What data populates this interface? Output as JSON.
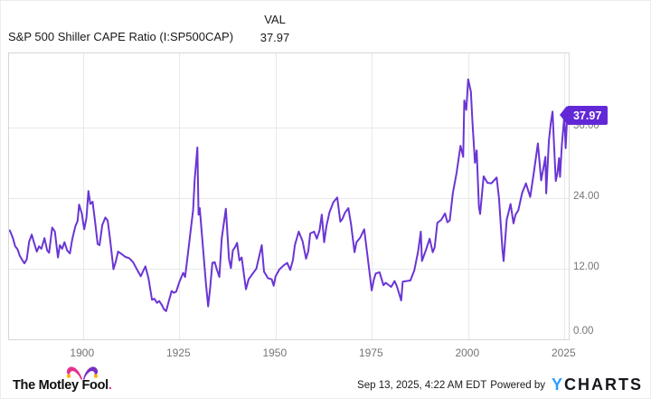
{
  "header": {
    "title": "S&P 500 Shiller CAPE Ratio (I:SP500CAP)",
    "column_label": "VAL",
    "column_value": "37.97"
  },
  "chart_data": {
    "type": "line",
    "title": "S&P 500 Shiller CAPE Ratio (I:SP500CAP)",
    "series_name": "S&P 500 Shiller CAPE Ratio",
    "legend_position": "none",
    "grid": true,
    "x_ticks": [
      1900,
      1925,
      1950,
      1975,
      2000,
      2025
    ],
    "x_tick_labels": [
      "1900",
      "1925",
      "1950",
      "1975",
      "2000",
      "2025"
    ],
    "y_ticks": [
      0,
      12,
      24,
      36
    ],
    "y_tick_labels": [
      "0.00",
      "12.00",
      "24.00",
      "36.00"
    ],
    "x_range": [
      1880.8,
      2026.1
    ],
    "y_range": [
      0,
      48.6
    ],
    "last_value_label": "37.97",
    "line_color": "#6a35d4",
    "points": [
      [
        1881.0,
        18.5
      ],
      [
        1881.8,
        17.2
      ],
      [
        1882.4,
        15.8
      ],
      [
        1883.0,
        15.3
      ],
      [
        1883.6,
        14.2
      ],
      [
        1884.3,
        13.4
      ],
      [
        1884.8,
        12.9
      ],
      [
        1885.4,
        13.6
      ],
      [
        1886.0,
        16.6
      ],
      [
        1886.7,
        17.8
      ],
      [
        1887.3,
        16.4
      ],
      [
        1888.0,
        14.9
      ],
      [
        1888.6,
        15.8
      ],
      [
        1889.2,
        15.4
      ],
      [
        1890.0,
        17.2
      ],
      [
        1890.7,
        15.1
      ],
      [
        1891.2,
        14.7
      ],
      [
        1892.0,
        19.0
      ],
      [
        1892.7,
        18.3
      ],
      [
        1893.5,
        13.9
      ],
      [
        1894.0,
        16.0
      ],
      [
        1894.6,
        15.4
      ],
      [
        1895.2,
        16.5
      ],
      [
        1895.9,
        15.1
      ],
      [
        1896.6,
        14.6
      ],
      [
        1897.2,
        17.0
      ],
      [
        1898.0,
        19.2
      ],
      [
        1898.6,
        20.1
      ],
      [
        1899.0,
        22.9
      ],
      [
        1899.7,
        21.4
      ],
      [
        1900.3,
        18.7
      ],
      [
        1900.9,
        20.6
      ],
      [
        1901.4,
        25.2
      ],
      [
        1901.9,
        23.0
      ],
      [
        1902.5,
        23.4
      ],
      [
        1903.1,
        20.2
      ],
      [
        1903.8,
        16.2
      ],
      [
        1904.3,
        16.0
      ],
      [
        1905.0,
        19.4
      ],
      [
        1905.8,
        20.7
      ],
      [
        1906.4,
        20.2
      ],
      [
        1907.0,
        17.2
      ],
      [
        1907.9,
        11.9
      ],
      [
        1908.5,
        13.2
      ],
      [
        1909.1,
        14.9
      ],
      [
        1910.0,
        14.5
      ],
      [
        1911.0,
        14.0
      ],
      [
        1912.0,
        13.8
      ],
      [
        1913.0,
        13.1
      ],
      [
        1914.0,
        11.9
      ],
      [
        1915.0,
        10.7
      ],
      [
        1915.6,
        11.6
      ],
      [
        1916.2,
        12.4
      ],
      [
        1917.0,
        10.4
      ],
      [
        1917.9,
        6.7
      ],
      [
        1918.5,
        6.9
      ],
      [
        1919.2,
        6.2
      ],
      [
        1919.8,
        6.5
      ],
      [
        1920.5,
        5.8
      ],
      [
        1921.0,
        5.1
      ],
      [
        1921.6,
        4.8
      ],
      [
        1922.2,
        6.3
      ],
      [
        1923.0,
        8.2
      ],
      [
        1923.6,
        7.9
      ],
      [
        1924.2,
        8.1
      ],
      [
        1925.0,
        9.7
      ],
      [
        1926.0,
        11.3
      ],
      [
        1926.5,
        10.6
      ],
      [
        1927.0,
        13.2
      ],
      [
        1928.0,
        18.8
      ],
      [
        1928.6,
        22.0
      ],
      [
        1929.0,
        27.1
      ],
      [
        1929.7,
        32.6
      ],
      [
        1930.0,
        21.2
      ],
      [
        1930.3,
        22.3
      ],
      [
        1931.0,
        16.7
      ],
      [
        1931.9,
        9.6
      ],
      [
        1932.5,
        5.6
      ],
      [
        1933.0,
        8.7
      ],
      [
        1933.6,
        13.0
      ],
      [
        1934.2,
        13.1
      ],
      [
        1934.8,
        11.8
      ],
      [
        1935.4,
        10.6
      ],
      [
        1936.0,
        17.1
      ],
      [
        1937.1,
        22.2
      ],
      [
        1937.9,
        13.6
      ],
      [
        1938.4,
        12.1
      ],
      [
        1938.9,
        15.1
      ],
      [
        1939.5,
        15.7
      ],
      [
        1940.0,
        16.4
      ],
      [
        1940.6,
        13.4
      ],
      [
        1941.2,
        13.9
      ],
      [
        1942.3,
        8.5
      ],
      [
        1943.0,
        10.2
      ],
      [
        1944.0,
        11.1
      ],
      [
        1945.0,
        12.0
      ],
      [
        1946.4,
        16.0
      ],
      [
        1947.0,
        11.5
      ],
      [
        1948.0,
        10.4
      ],
      [
        1949.0,
        10.2
      ],
      [
        1949.5,
        9.1
      ],
      [
        1950.0,
        10.7
      ],
      [
        1951.0,
        11.9
      ],
      [
        1952.0,
        12.5
      ],
      [
        1953.0,
        13.0
      ],
      [
        1953.8,
        11.8
      ],
      [
        1954.5,
        13.5
      ],
      [
        1955.0,
        16.0
      ],
      [
        1956.0,
        18.3
      ],
      [
        1957.0,
        16.7
      ],
      [
        1957.9,
        13.7
      ],
      [
        1958.5,
        15.0
      ],
      [
        1959.0,
        18.0
      ],
      [
        1960.0,
        18.3
      ],
      [
        1960.7,
        17.1
      ],
      [
        1961.4,
        18.5
      ],
      [
        1962.0,
        21.2
      ],
      [
        1962.6,
        16.5
      ],
      [
        1963.2,
        19.2
      ],
      [
        1964.0,
        21.6
      ],
      [
        1965.0,
        23.3
      ],
      [
        1966.0,
        24.1
      ],
      [
        1966.8,
        20.0
      ],
      [
        1967.3,
        20.4
      ],
      [
        1968.0,
        21.5
      ],
      [
        1968.9,
        22.3
      ],
      [
        1969.6,
        19.5
      ],
      [
        1970.5,
        14.8
      ],
      [
        1971.0,
        16.5
      ],
      [
        1972.0,
        17.3
      ],
      [
        1973.0,
        18.7
      ],
      [
        1974.0,
        13.5
      ],
      [
        1974.95,
        8.3
      ],
      [
        1975.5,
        10.1
      ],
      [
        1976.0,
        11.2
      ],
      [
        1977.0,
        11.4
      ],
      [
        1978.0,
        9.2
      ],
      [
        1978.6,
        9.6
      ],
      [
        1979.2,
        9.3
      ],
      [
        1980.0,
        8.9
      ],
      [
        1980.9,
        9.9
      ],
      [
        1981.5,
        9.0
      ],
      [
        1982.6,
        6.6
      ],
      [
        1983.0,
        9.8
      ],
      [
        1984.0,
        9.9
      ],
      [
        1985.0,
        10.0
      ],
      [
        1986.0,
        11.7
      ],
      [
        1987.0,
        14.9
      ],
      [
        1987.7,
        18.3
      ],
      [
        1988.0,
        13.3
      ],
      [
        1989.0,
        15.1
      ],
      [
        1990.0,
        17.1
      ],
      [
        1990.8,
        14.8
      ],
      [
        1991.3,
        15.6
      ],
      [
        1992.0,
        19.8
      ],
      [
        1993.0,
        20.3
      ],
      [
        1994.0,
        21.4
      ],
      [
        1994.6,
        19.9
      ],
      [
        1995.2,
        20.2
      ],
      [
        1996.0,
        24.8
      ],
      [
        1997.0,
        28.3
      ],
      [
        1998.0,
        32.9
      ],
      [
        1998.7,
        31.0
      ],
      [
        1999.0,
        40.6
      ],
      [
        1999.5,
        39.0
      ],
      [
        2000.0,
        44.2
      ],
      [
        2000.7,
        42.1
      ],
      [
        2001.1,
        37.0
      ],
      [
        2001.75,
        30.0
      ],
      [
        2002.2,
        32.1
      ],
      [
        2002.8,
        22.5
      ],
      [
        2003.1,
        21.3
      ],
      [
        2004.0,
        27.7
      ],
      [
        2005.0,
        26.6
      ],
      [
        2006.0,
        26.5
      ],
      [
        2007.4,
        27.5
      ],
      [
        2008.0,
        24.0
      ],
      [
        2008.9,
        15.2
      ],
      [
        2009.2,
        13.3
      ],
      [
        2010.0,
        20.3
      ],
      [
        2011.0,
        23.0
      ],
      [
        2011.75,
        19.7
      ],
      [
        2012.3,
        21.2
      ],
      [
        2013.0,
        21.9
      ],
      [
        2014.0,
        24.9
      ],
      [
        2015.0,
        26.5
      ],
      [
        2016.1,
        24.2
      ],
      [
        2017.0,
        28.1
      ],
      [
        2018.1,
        33.3
      ],
      [
        2018.95,
        27.0
      ],
      [
        2019.5,
        29.0
      ],
      [
        2020.05,
        31.0
      ],
      [
        2020.25,
        24.8
      ],
      [
        2020.95,
        33.8
      ],
      [
        2021.5,
        37.0
      ],
      [
        2021.9,
        38.7
      ],
      [
        2022.3,
        33.0
      ],
      [
        2022.75,
        26.9
      ],
      [
        2023.2,
        28.3
      ],
      [
        2023.6,
        30.8
      ],
      [
        2023.85,
        27.6
      ],
      [
        2024.3,
        32.8
      ],
      [
        2024.95,
        37.9
      ],
      [
        2025.3,
        32.5
      ],
      [
        2025.7,
        37.97
      ]
    ]
  },
  "footer": {
    "logo_text": "The Motley Fool",
    "logo_dot": ".",
    "timestamp": "Sep 13, 2025, 4:22 AM EDT",
    "powered_by": "Powered by",
    "brand_y": "Y",
    "brand_charts": "CHARTS"
  },
  "icons": {
    "jester_hat_icon": "two-lobed jester cap with bells (Motley Fool logo mark)"
  },
  "colors": {
    "line_purple": "#6a35d4",
    "value_label_bg": "#6228d7",
    "gridline": "#e9e9e9",
    "plot_border": "#d7d7d7",
    "axis_text": "#757575",
    "ycharts_blue": "#2e9bff",
    "mf_pink": "#e5318c",
    "mf_purple": "#7a2fc1",
    "mf_amber": "#ffb000"
  }
}
